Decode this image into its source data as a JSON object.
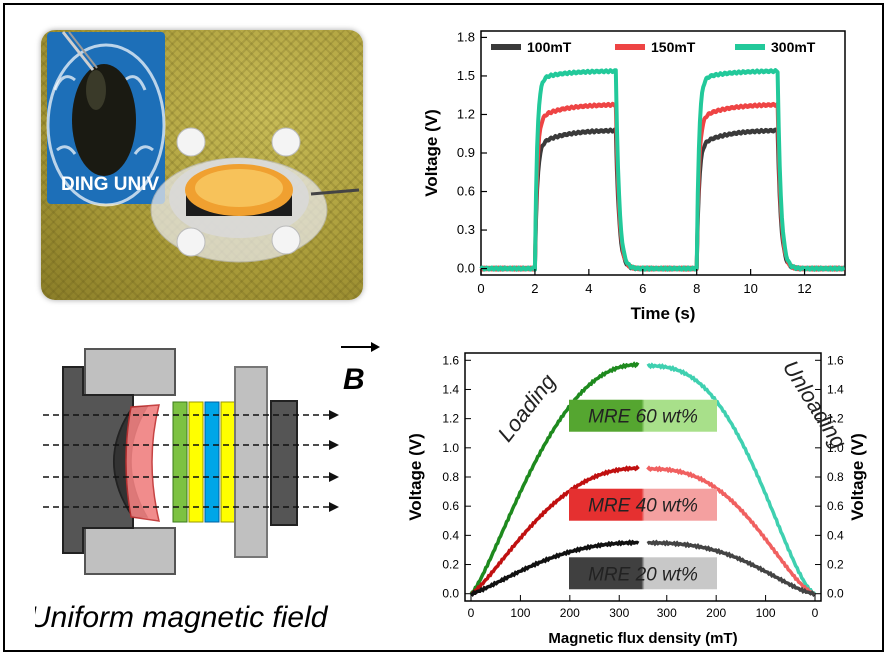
{
  "photo": {
    "badge_text": "DING UNIV"
  },
  "diagram": {
    "field_symbol": "B",
    "caption": "Uniform magnetic field",
    "colors": {
      "green": "#7dc242",
      "yellow": "#ffff00",
      "blue": "#00a6e8",
      "red_layer": "#f08080",
      "dark": "#505050",
      "light": "#c0c0c0"
    }
  },
  "chart_data": [
    {
      "type": "line",
      "xlabel": "Time (s)",
      "ylabel": "Voltage (V)",
      "xlim": [
        0,
        13.5
      ],
      "ylim": [
        -0.05,
        1.85
      ],
      "xticks": [
        0,
        2,
        4,
        6,
        8,
        10,
        12
      ],
      "yticks": [
        0.0,
        0.3,
        0.6,
        0.9,
        1.2,
        1.5,
        1.8
      ],
      "legend_position": "top",
      "series": [
        {
          "name": "100mT",
          "color": "#3a3a3a",
          "plateau_start": 0.95,
          "plateau_end": 1.08
        },
        {
          "name": "150mT",
          "color": "#ee4444",
          "plateau_start": 1.16,
          "plateau_end": 1.28
        },
        {
          "name": "300mT",
          "color": "#22c99a",
          "plateau_start": 1.47,
          "plateau_end": 1.54
        }
      ],
      "pulses": [
        [
          2.0,
          5.0
        ],
        [
          8.0,
          11.0
        ]
      ]
    },
    {
      "type": "line",
      "xlabel": "Magnetic flux density (mT)",
      "ylabel_left": "Voltage (V)",
      "ylabel_right": "Voltage (V)",
      "xticks_left": [
        0,
        100,
        200,
        300
      ],
      "xticks_right": [
        300,
        200,
        100,
        0
      ],
      "yticks": [
        0.0,
        0.2,
        0.4,
        0.6,
        0.8,
        1.0,
        1.2,
        1.4,
        1.6
      ],
      "ylim": [
        -0.05,
        1.65
      ],
      "xmax": 340,
      "phases": {
        "loading": "Loading",
        "unloading": "Unloading"
      },
      "series": [
        {
          "name": "MRE 60 wt%",
          "peak": 1.57,
          "loading_color": "#1e8a1e",
          "unloading_color": "#3fd0b0",
          "label_colors": [
            "#55a630",
            "#a8e08a"
          ]
        },
        {
          "name": "MRE 40 wt%",
          "peak": 0.86,
          "loading_color": "#c01010",
          "unloading_color": "#f06060",
          "label_colors": [
            "#e53030",
            "#f4a0a0"
          ]
        },
        {
          "name": "MRE 20 wt%",
          "peak": 0.35,
          "loading_color": "#111111",
          "unloading_color": "#444444",
          "label_colors": [
            "#404040",
            "#c8c8c8"
          ]
        }
      ]
    }
  ]
}
